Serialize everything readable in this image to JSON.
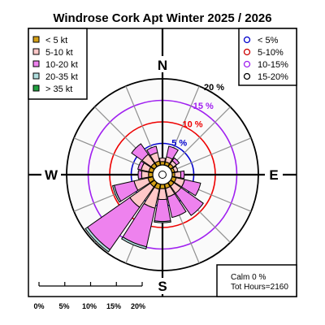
{
  "chart_data": {
    "type": "windrose",
    "title": "Windrose  Cork Apt Winter 2025 / 2026",
    "directions": [
      "N",
      "NNE",
      "NE",
      "ENE",
      "E",
      "ESE",
      "SE",
      "SSE",
      "S",
      "SSW",
      "SW",
      "WSW",
      "W",
      "WNW",
      "NW",
      "NNW"
    ],
    "cardinal_labels": [
      "N",
      "E",
      "S",
      "W"
    ],
    "speed_bins": [
      {
        "label": "< 5  kt",
        "color": "#d4a017"
      },
      {
        "label": "5-10 kt",
        "color": "#ffc8c8"
      },
      {
        "label": "10-20 kt",
        "color": "#ee82ee"
      },
      {
        "label": "20-35 kt",
        "color": "#b0dede"
      },
      {
        "label": "> 35 kt",
        "color": "#20a040"
      }
    ],
    "frequencies_percent": {
      "N": [
        0.8,
        0.8,
        0.0,
        0.0,
        0.0
      ],
      "NNE": [
        0.8,
        1.2,
        2.5,
        0.0,
        0.0
      ],
      "NE": [
        0.8,
        0.9,
        0.8,
        0.0,
        0.0
      ],
      "ENE": [
        0.6,
        0.8,
        0.0,
        0.0,
        0.0
      ],
      "E": [
        0.6,
        1.4,
        0.8,
        0.0,
        0.0
      ],
      "ESE": [
        1.0,
        2.0,
        3.8,
        0.0,
        0.0
      ],
      "SE": [
        1.0,
        2.0,
        6.3,
        0.0,
        0.0
      ],
      "SSE": [
        1.0,
        2.0,
        4.9,
        0.0,
        0.0
      ],
      "S": [
        1.0,
        2.5,
        5.1,
        0.3,
        0.0
      ],
      "SSW": [
        1.2,
        4.5,
        9.2,
        0.5,
        0.0
      ],
      "SW": [
        1.2,
        5.8,
        12.0,
        0.6,
        0.0
      ],
      "WSW": [
        1.2,
        3.3,
        4.7,
        0.4,
        0.0
      ],
      "W": [
        1.0,
        1.6,
        0.8,
        0.0,
        0.0
      ],
      "WNW": [
        1.0,
        1.8,
        0.8,
        0.0,
        0.0
      ],
      "NW": [
        1.0,
        2.5,
        3.0,
        0.0,
        0.0
      ],
      "NNW": [
        1.0,
        2.0,
        1.5,
        0.0,
        0.0
      ]
    },
    "ring_legend": [
      {
        "label": "< 5%",
        "color": "#0000cc"
      },
      {
        "label": "5-10%",
        "color": "#cc0000"
      },
      {
        "label": "10-15%",
        "color": "#a020f0"
      },
      {
        "label": "15-20%",
        "color": "#000000"
      }
    ],
    "rings": [
      {
        "percent": 5,
        "label": "5 %",
        "color": "#0000cc"
      },
      {
        "percent": 10,
        "label": "10 %",
        "color": "#ee0000"
      },
      {
        "percent": 15,
        "label": "15 %",
        "color": "#a020f0"
      },
      {
        "percent": 20,
        "label": "20 %",
        "color": "#000000"
      }
    ],
    "max_percent": 20,
    "scale_bar_labels": [
      "0%",
      "5%",
      "10%",
      "15%",
      "20%"
    ],
    "calm_text": "Calm 0 %",
    "hours_text": "Tot Hours=2160"
  }
}
